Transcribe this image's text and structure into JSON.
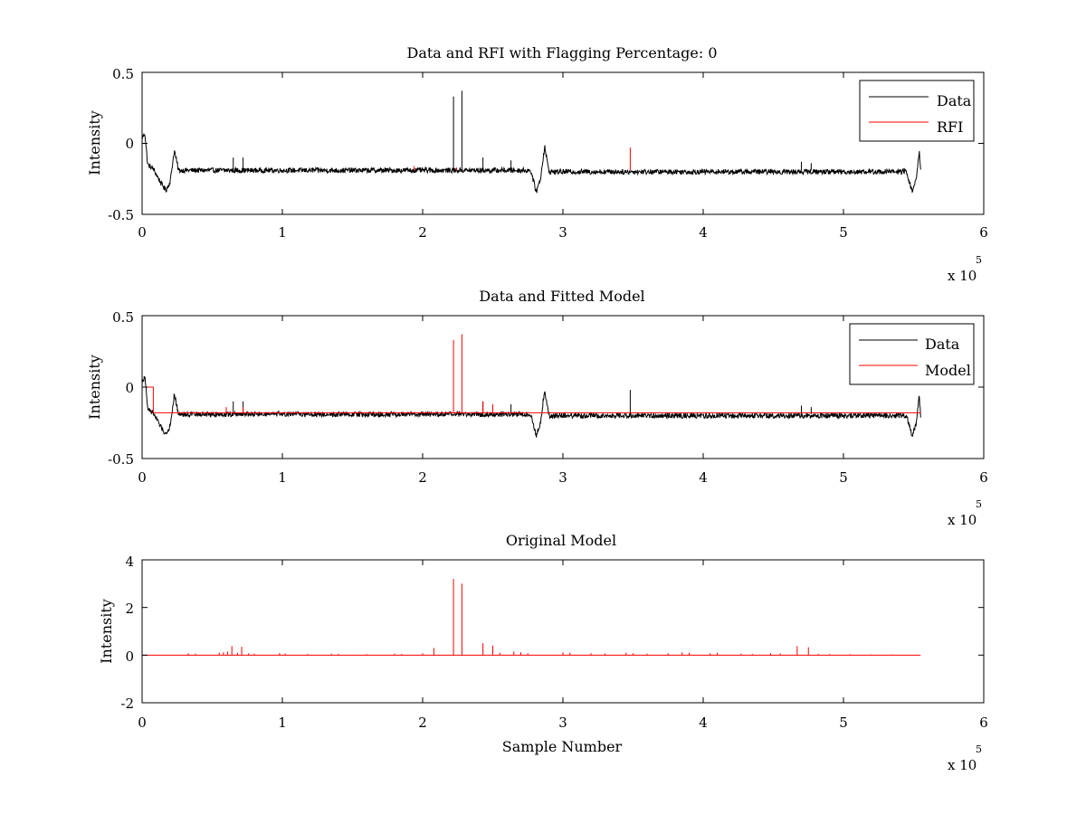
{
  "colors": {
    "data": "#000000",
    "red": "#ff0000",
    "axis": "#000000",
    "background": "#ffffff"
  },
  "chart_data": [
    {
      "type": "line",
      "title": "Data and RFI with Flagging Percentage: 0",
      "xlabel": "",
      "ylabel": "Intensity",
      "xlim": [
        0,
        600000
      ],
      "ylim": [
        -0.5,
        0.5
      ],
      "xticks": [
        0,
        1,
        2,
        3,
        4,
        5,
        6
      ],
      "yticks": [
        "0.5",
        "0",
        "-0.5"
      ],
      "x_exponent": "x 10",
      "x_exponent_power": "5",
      "legend_position": "top-right",
      "legend": [
        {
          "label": "Data",
          "color": "#000000"
        },
        {
          "label": "RFI",
          "color": "#ff0000"
        }
      ],
      "series": [
        {
          "name": "Data",
          "color": "#000000",
          "baseline": -0.19,
          "noise": 0.018,
          "x_end": 555000,
          "features": [
            [
              0,
              0.04
            ],
            [
              2000,
              0.07
            ],
            [
              4000,
              -0.15
            ],
            [
              8000,
              -0.18
            ],
            [
              14000,
              -0.29
            ],
            [
              17000,
              -0.33
            ],
            [
              20000,
              -0.27
            ],
            [
              23000,
              -0.05
            ],
            [
              26000,
              -0.19
            ],
            [
              277000,
              -0.19
            ],
            [
              281000,
              -0.34
            ],
            [
              284000,
              -0.25
            ],
            [
              287000,
              -0.02
            ],
            [
              290000,
              -0.2
            ],
            [
              545000,
              -0.2
            ],
            [
              549000,
              -0.34
            ],
            [
              552000,
              -0.25
            ],
            [
              554000,
              -0.05
            ],
            [
              555000,
              -0.2
            ]
          ],
          "spikes": [
            [
              222000,
              0.33
            ],
            [
              228000,
              0.37
            ],
            [
              65000,
              -0.1
            ],
            [
              72000,
              -0.1
            ],
            [
              243000,
              -0.1
            ],
            [
              263000,
              -0.12
            ],
            [
              470000,
              -0.13
            ],
            [
              477000,
              -0.14
            ]
          ]
        },
        {
          "name": "RFI",
          "color": "#ff0000",
          "spikes": [
            [
              348000,
              -0.03
            ],
            [
              194000,
              -0.16
            ],
            [
              224000,
              -0.17
            ]
          ]
        }
      ]
    },
    {
      "type": "line",
      "title": "Data and Fitted Model",
      "xlabel": "",
      "ylabel": "Intensity",
      "xlim": [
        0,
        600000
      ],
      "ylim": [
        -0.5,
        0.5
      ],
      "xticks": [
        0,
        1,
        2,
        3,
        4,
        5,
        6
      ],
      "yticks": [
        "0.5",
        "0",
        "-0.5"
      ],
      "x_exponent": "x 10",
      "x_exponent_power": "5",
      "legend_position": "top-right",
      "legend": [
        {
          "label": "Data",
          "color": "#000000"
        },
        {
          "label": "Model",
          "color": "#ff0000"
        }
      ],
      "series": [
        {
          "name": "Data",
          "color": "#000000",
          "baseline": -0.19,
          "noise": 0.018,
          "x_end": 555000,
          "features": [
            [
              0,
              0.04
            ],
            [
              2000,
              0.07
            ],
            [
              4000,
              -0.15
            ],
            [
              8000,
              -0.18
            ],
            [
              14000,
              -0.29
            ],
            [
              17000,
              -0.33
            ],
            [
              20000,
              -0.27
            ],
            [
              23000,
              -0.05
            ],
            [
              26000,
              -0.19
            ],
            [
              277000,
              -0.19
            ],
            [
              281000,
              -0.34
            ],
            [
              284000,
              -0.25
            ],
            [
              287000,
              -0.02
            ],
            [
              290000,
              -0.2
            ],
            [
              545000,
              -0.2
            ],
            [
              549000,
              -0.34
            ],
            [
              552000,
              -0.25
            ],
            [
              554000,
              -0.05
            ],
            [
              555000,
              -0.2
            ]
          ],
          "spikes": [
            [
              65000,
              -0.1
            ],
            [
              72000,
              -0.1
            ],
            [
              243000,
              -0.1
            ],
            [
              263000,
              -0.12
            ],
            [
              348000,
              -0.02
            ],
            [
              470000,
              -0.13
            ],
            [
              477000,
              -0.14
            ]
          ]
        },
        {
          "name": "Model",
          "color": "#ff0000",
          "steps": [
            [
              0,
              0.0
            ],
            [
              8000,
              0.0
            ],
            [
              8000,
              -0.18
            ],
            [
              555000,
              -0.18
            ]
          ],
          "spikes": [
            [
              222000,
              0.33
            ],
            [
              228000,
              0.37
            ],
            [
              243000,
              -0.1
            ],
            [
              250000,
              -0.12
            ],
            [
              60000,
              -0.14
            ],
            [
              72000,
              -0.14
            ]
          ]
        }
      ]
    },
    {
      "type": "line",
      "title": "Original Model",
      "xlabel": "Sample Number",
      "ylabel": "Intensity",
      "xlim": [
        0,
        600000
      ],
      "ylim": [
        -2,
        4
      ],
      "xticks": [
        0,
        1,
        2,
        3,
        4,
        5,
        6
      ],
      "yticks": [
        "4",
        "2",
        "0",
        "-2"
      ],
      "x_exponent": "x 10",
      "x_exponent_power": "5",
      "series": [
        {
          "name": "",
          "color": "#ff0000",
          "baseline": 0,
          "x_end": 555000,
          "spikes": [
            [
              222000,
              3.2
            ],
            [
              228000,
              3.0
            ],
            [
              243000,
              0.5
            ],
            [
              250000,
              0.4
            ],
            [
              64000,
              0.38
            ],
            [
              71000,
              0.35
            ],
            [
              208000,
              0.3
            ],
            [
              467000,
              0.38
            ],
            [
              475000,
              0.33
            ],
            [
              33000,
              0.08
            ],
            [
              38000,
              0.06
            ],
            [
              55000,
              0.1
            ],
            [
              58000,
              0.12
            ],
            [
              61000,
              0.15
            ],
            [
              68000,
              0.1
            ],
            [
              76000,
              0.08
            ],
            [
              80000,
              0.06
            ],
            [
              98000,
              0.09
            ],
            [
              102000,
              0.07
            ],
            [
              118000,
              0.05
            ],
            [
              135000,
              0.06
            ],
            [
              140000,
              0.05
            ],
            [
              160000,
              0.04
            ],
            [
              180000,
              0.06
            ],
            [
              185000,
              0.05
            ],
            [
              200000,
              0.08
            ],
            [
              255000,
              0.1
            ],
            [
              265000,
              0.15
            ],
            [
              270000,
              0.12
            ],
            [
              275000,
              0.08
            ],
            [
              300000,
              0.12
            ],
            [
              305000,
              0.1
            ],
            [
              320000,
              0.08
            ],
            [
              330000,
              0.07
            ],
            [
              345000,
              0.1
            ],
            [
              350000,
              0.08
            ],
            [
              360000,
              0.06
            ],
            [
              375000,
              0.08
            ],
            [
              385000,
              0.12
            ],
            [
              390000,
              0.1
            ],
            [
              405000,
              0.08
            ],
            [
              410000,
              0.1
            ],
            [
              427000,
              0.06
            ],
            [
              435000,
              0.05
            ],
            [
              448000,
              0.08
            ],
            [
              455000,
              0.07
            ],
            [
              482000,
              0.05
            ],
            [
              490000,
              0.04
            ],
            [
              505000,
              0.04
            ],
            [
              520000,
              0.03
            ],
            [
              535000,
              0.03
            ]
          ]
        }
      ]
    }
  ]
}
